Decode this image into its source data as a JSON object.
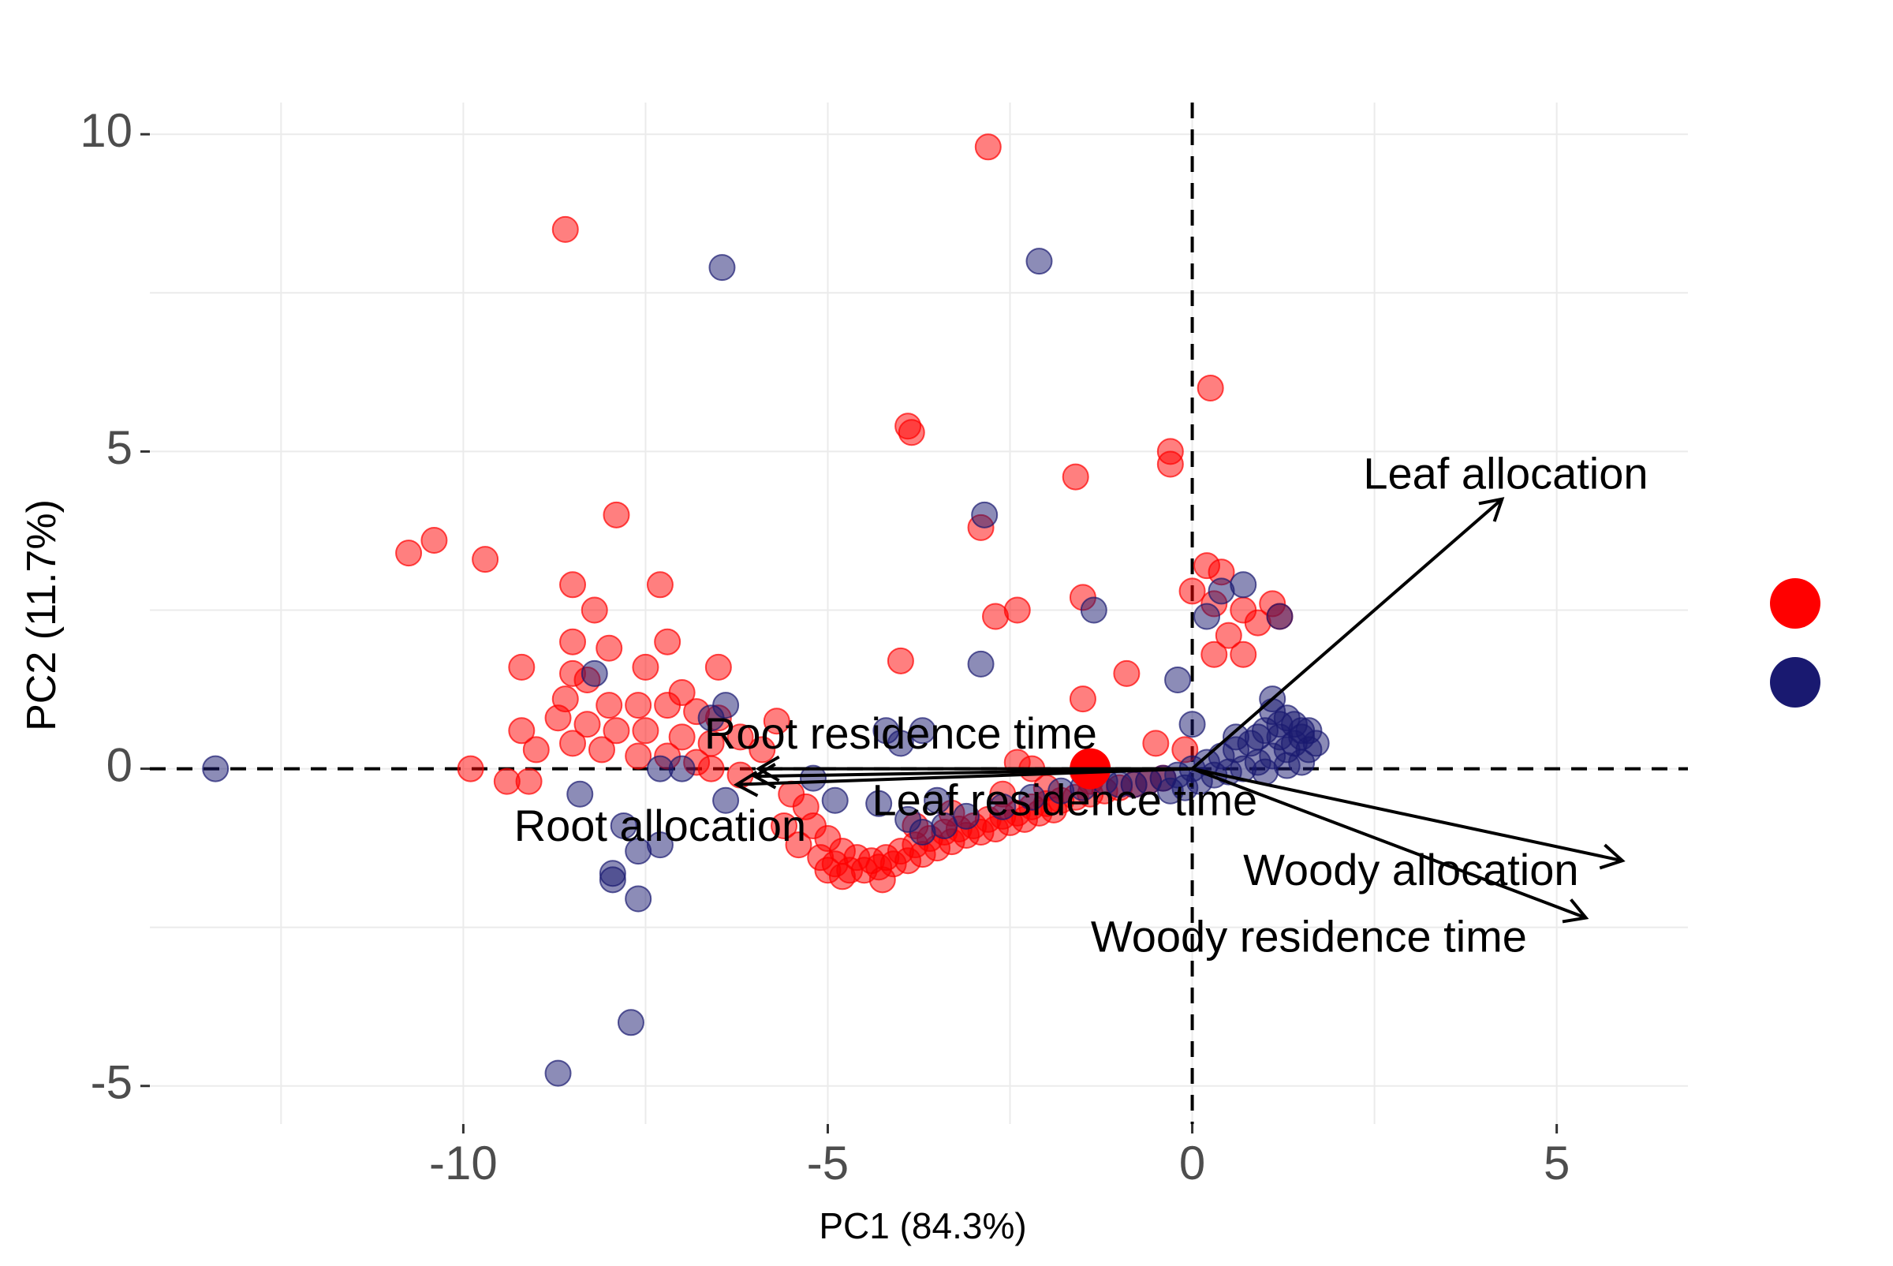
{
  "chart_data": {
    "type": "scatter",
    "title": "",
    "xlabel": "PC1 (84.3%)",
    "ylabel": "PC2 (11.7%)",
    "xlim": [
      -14.3,
      6.8
    ],
    "ylim": [
      -5.6,
      10.5
    ],
    "x_ticks": [
      {
        "value": -10,
        "label": "-10"
      },
      {
        "value": -5,
        "label": "-5"
      },
      {
        "value": 0,
        "label": "0"
      },
      {
        "value": 5,
        "label": "5"
      }
    ],
    "y_ticks": [
      {
        "value": -5,
        "label": "-5"
      },
      {
        "value": 0,
        "label": "0"
      },
      {
        "value": 5,
        "label": "5"
      },
      {
        "value": 10,
        "label": "10"
      }
    ],
    "minor_x_gridlines": [
      -12.5,
      -7.5,
      -2.5,
      2.5
    ],
    "minor_y_gridlines": [
      -2.5,
      2.5,
      7.5
    ],
    "grid": true,
    "reference_lines": {
      "x": 0,
      "y": 0,
      "style": "dashed"
    },
    "legend_position": "right",
    "series": [
      {
        "color": "#FF0000",
        "opacity": 0.5,
        "points": [
          [
            -8.6,
            8.5
          ],
          [
            -2.8,
            9.8
          ],
          [
            0.25,
            6.0
          ],
          [
            -3.9,
            5.4
          ],
          [
            -3.85,
            5.3
          ],
          [
            -0.3,
            5.0
          ],
          [
            -0.3,
            4.8
          ],
          [
            -1.6,
            4.6
          ],
          [
            -2.9,
            3.8
          ],
          [
            -7.9,
            4.0
          ],
          [
            -10.75,
            3.4
          ],
          [
            -10.4,
            3.6
          ],
          [
            -9.7,
            3.3
          ],
          [
            -8.5,
            2.9
          ],
          [
            -7.3,
            2.9
          ],
          [
            -8.2,
            2.5
          ],
          [
            -2.4,
            2.5
          ],
          [
            -2.7,
            2.4
          ],
          [
            -1.5,
            2.7
          ],
          [
            0.2,
            3.2
          ],
          [
            0.4,
            3.1
          ],
          [
            0.0,
            2.8
          ],
          [
            0.3,
            2.6
          ],
          [
            0.7,
            2.5
          ],
          [
            0.9,
            2.3
          ],
          [
            1.1,
            2.6
          ],
          [
            1.2,
            2.4
          ],
          [
            0.5,
            2.1
          ],
          [
            0.7,
            1.8
          ],
          [
            0.3,
            1.8
          ],
          [
            -8.5,
            2.0
          ],
          [
            -8.0,
            1.9
          ],
          [
            -7.2,
            2.0
          ],
          [
            -9.2,
            1.6
          ],
          [
            -8.5,
            1.5
          ],
          [
            -8.3,
            1.4
          ],
          [
            -7.5,
            1.6
          ],
          [
            -6.5,
            1.6
          ],
          [
            -4.0,
            1.7
          ],
          [
            -0.9,
            1.5
          ],
          [
            -1.5,
            1.1
          ],
          [
            -7.0,
            1.2
          ],
          [
            -8.6,
            1.1
          ],
          [
            -8.0,
            1.0
          ],
          [
            -7.6,
            1.0
          ],
          [
            -7.2,
            1.0
          ],
          [
            -6.8,
            0.9
          ],
          [
            -6.5,
            0.8
          ],
          [
            -8.7,
            0.8
          ],
          [
            -8.3,
            0.7
          ],
          [
            -7.9,
            0.6
          ],
          [
            -7.5,
            0.6
          ],
          [
            -7.0,
            0.5
          ],
          [
            -6.6,
            0.4
          ],
          [
            -5.7,
            0.75
          ],
          [
            -6.2,
            0.5
          ],
          [
            -5.9,
            0.3
          ],
          [
            -9.2,
            0.6
          ],
          [
            -9.0,
            0.3
          ],
          [
            -8.5,
            0.4
          ],
          [
            -8.1,
            0.3
          ],
          [
            -7.6,
            0.2
          ],
          [
            -7.2,
            0.2
          ],
          [
            -6.8,
            0.1
          ],
          [
            -9.9,
            0.0
          ],
          [
            -9.4,
            -0.2
          ],
          [
            -9.1,
            -0.2
          ],
          [
            -6.6,
            0.0
          ],
          [
            -6.2,
            -0.1
          ],
          [
            -2.4,
            0.1
          ],
          [
            -2.2,
            0.0
          ],
          [
            -1.5,
            -0.05
          ],
          [
            -0.5,
            0.4
          ],
          [
            -0.1,
            0.3
          ],
          [
            -5.5,
            -0.4
          ],
          [
            -5.3,
            -0.6
          ],
          [
            -5.2,
            -0.9
          ],
          [
            -5.0,
            -1.1
          ],
          [
            -4.8,
            -1.3
          ],
          [
            -4.6,
            -1.4
          ],
          [
            -4.4,
            -1.45
          ],
          [
            -4.2,
            -1.4
          ],
          [
            -4.0,
            -1.3
          ],
          [
            -3.8,
            -1.2
          ],
          [
            -3.6,
            -1.1
          ],
          [
            -3.4,
            -1.0
          ],
          [
            -3.2,
            -0.95
          ],
          [
            -3.0,
            -0.9
          ],
          [
            -2.8,
            -0.8
          ],
          [
            -2.6,
            -0.75
          ],
          [
            -2.4,
            -0.7
          ],
          [
            -2.2,
            -0.6
          ],
          [
            -2.0,
            -0.55
          ],
          [
            -1.8,
            -0.5
          ],
          [
            -1.6,
            -0.45
          ],
          [
            -1.4,
            -0.4
          ],
          [
            -1.2,
            -0.35
          ],
          [
            -1.0,
            -0.3
          ],
          [
            -0.8,
            -0.25
          ],
          [
            -0.6,
            -0.2
          ],
          [
            -0.4,
            -0.15
          ],
          [
            -5.6,
            -0.9
          ],
          [
            -5.4,
            -1.2
          ],
          [
            -5.1,
            -1.4
          ],
          [
            -4.9,
            -1.5
          ],
          [
            -4.7,
            -1.6
          ],
          [
            -4.5,
            -1.6
          ],
          [
            -4.3,
            -1.55
          ],
          [
            -4.1,
            -1.5
          ],
          [
            -3.9,
            -1.45
          ],
          [
            -3.7,
            -1.35
          ],
          [
            -3.5,
            -1.25
          ],
          [
            -3.3,
            -1.15
          ],
          [
            -3.1,
            -1.05
          ],
          [
            -2.9,
            -1.0
          ],
          [
            -2.7,
            -0.95
          ],
          [
            -2.5,
            -0.85
          ],
          [
            -2.3,
            -0.8
          ],
          [
            -2.1,
            -0.7
          ],
          [
            -1.9,
            -0.65
          ],
          [
            -4.25,
            -1.75
          ],
          [
            -4.8,
            -1.7
          ],
          [
            -5.0,
            -1.6
          ],
          [
            -3.8,
            -0.9
          ],
          [
            -3.3,
            -0.7
          ],
          [
            -2.6,
            -0.4
          ],
          [
            -2.0,
            -0.3
          ],
          [
            -1.4,
            -0.2
          ]
        ]
      },
      {
        "color": "#191970",
        "opacity": 0.5,
        "points": [
          [
            -6.45,
            7.9
          ],
          [
            -2.1,
            8.0
          ],
          [
            -2.85,
            4.0
          ],
          [
            -1.35,
            2.5
          ],
          [
            -2.9,
            1.65
          ],
          [
            0.2,
            2.4
          ],
          [
            -0.2,
            1.4
          ],
          [
            0.4,
            2.8
          ],
          [
            0.7,
            2.9
          ],
          [
            1.2,
            2.4
          ],
          [
            1.1,
            1.1
          ],
          [
            -6.4,
            1.0
          ],
          [
            -6.6,
            0.8
          ],
          [
            -8.2,
            1.5
          ],
          [
            -4.0,
            0.4
          ],
          [
            -3.7,
            0.6
          ],
          [
            -4.2,
            0.6
          ],
          [
            -7.3,
            0.0
          ],
          [
            -7.0,
            0.0
          ],
          [
            -6.4,
            -0.5
          ],
          [
            -8.4,
            -0.4
          ],
          [
            -7.8,
            -0.9
          ],
          [
            -7.3,
            -1.2
          ],
          [
            -7.6,
            -1.3
          ],
          [
            -7.95,
            -1.65
          ],
          [
            -7.95,
            -1.75
          ],
          [
            -7.6,
            -2.05
          ],
          [
            -5.2,
            -0.15
          ],
          [
            -4.9,
            -0.5
          ],
          [
            -3.5,
            -0.5
          ],
          [
            -3.9,
            -0.8
          ],
          [
            -4.3,
            -0.55
          ],
          [
            -7.7,
            -4.0
          ],
          [
            -8.7,
            -4.8
          ],
          [
            -13.4,
            0.0
          ],
          [
            0.0,
            0.7
          ],
          [
            1.1,
            0.9
          ],
          [
            1.3,
            0.8
          ],
          [
            1.5,
            0.5
          ],
          [
            1.6,
            0.3
          ],
          [
            1.5,
            0.1
          ],
          [
            1.4,
            0.4
          ],
          [
            1.2,
            0.5
          ],
          [
            1.0,
            0.6
          ],
          [
            0.8,
            0.4
          ],
          [
            0.6,
            0.3
          ],
          [
            0.4,
            0.2
          ],
          [
            0.2,
            0.1
          ],
          [
            0.0,
            0.0
          ],
          [
            -0.2,
            -0.1
          ],
          [
            -0.4,
            -0.15
          ],
          [
            -0.6,
            -0.2
          ],
          [
            -0.8,
            -0.25
          ],
          [
            -1.0,
            -0.25
          ],
          [
            1.5,
            0.6
          ],
          [
            1.3,
            0.3
          ],
          [
            1.1,
            0.2
          ],
          [
            0.9,
            0.1
          ],
          [
            0.7,
            0.0
          ],
          [
            0.5,
            -0.05
          ],
          [
            0.3,
            -0.1
          ],
          [
            0.1,
            -0.2
          ],
          [
            -0.1,
            -0.3
          ],
          [
            -0.3,
            -0.35
          ],
          [
            1.7,
            0.4
          ],
          [
            1.6,
            0.6
          ],
          [
            1.4,
            0.7
          ],
          [
            1.2,
            0.7
          ],
          [
            0.9,
            0.5
          ],
          [
            0.6,
            0.5
          ],
          [
            1.3,
            0.05
          ],
          [
            1.0,
            -0.05
          ],
          [
            -3.1,
            -0.75
          ],
          [
            -2.6,
            -0.6
          ],
          [
            -2.2,
            -0.45
          ],
          [
            -1.8,
            -0.35
          ],
          [
            -1.5,
            -0.3
          ],
          [
            -1.2,
            -0.2
          ],
          [
            -3.4,
            -0.9
          ],
          [
            -3.7,
            -1.0
          ]
        ]
      }
    ],
    "highlight_points": [
      {
        "x": -1.4,
        "y": 0.0,
        "color": "#FF0000"
      }
    ],
    "loadings": [
      {
        "label": "Leaf allocation",
        "x": 4.25,
        "y": 4.25,
        "label_x": 4.3,
        "label_y": 4.6
      },
      {
        "label": "Root residence time",
        "x": -5.95,
        "y": 0.0,
        "label_x": -4.0,
        "label_y": 0.5
      },
      {
        "label": "Root allocation",
        "x": -6.25,
        "y": -0.25,
        "label_x": -7.3,
        "label_y": -0.95
      },
      {
        "label": "Leaf residence time",
        "x": -6.0,
        "y": -0.12,
        "label_x": -1.75,
        "label_y": -0.55
      },
      {
        "label": "Woody allocation",
        "x": 5.9,
        "y": -1.45,
        "label_x": 3.0,
        "label_y": -1.65
      },
      {
        "label": "Woody residence time",
        "x": 5.4,
        "y": -2.35,
        "label_x": 1.6,
        "label_y": -2.7
      }
    ],
    "legend": {
      "entries": [
        {
          "color": "#FF0000"
        },
        {
          "color": "#191970"
        }
      ]
    }
  }
}
